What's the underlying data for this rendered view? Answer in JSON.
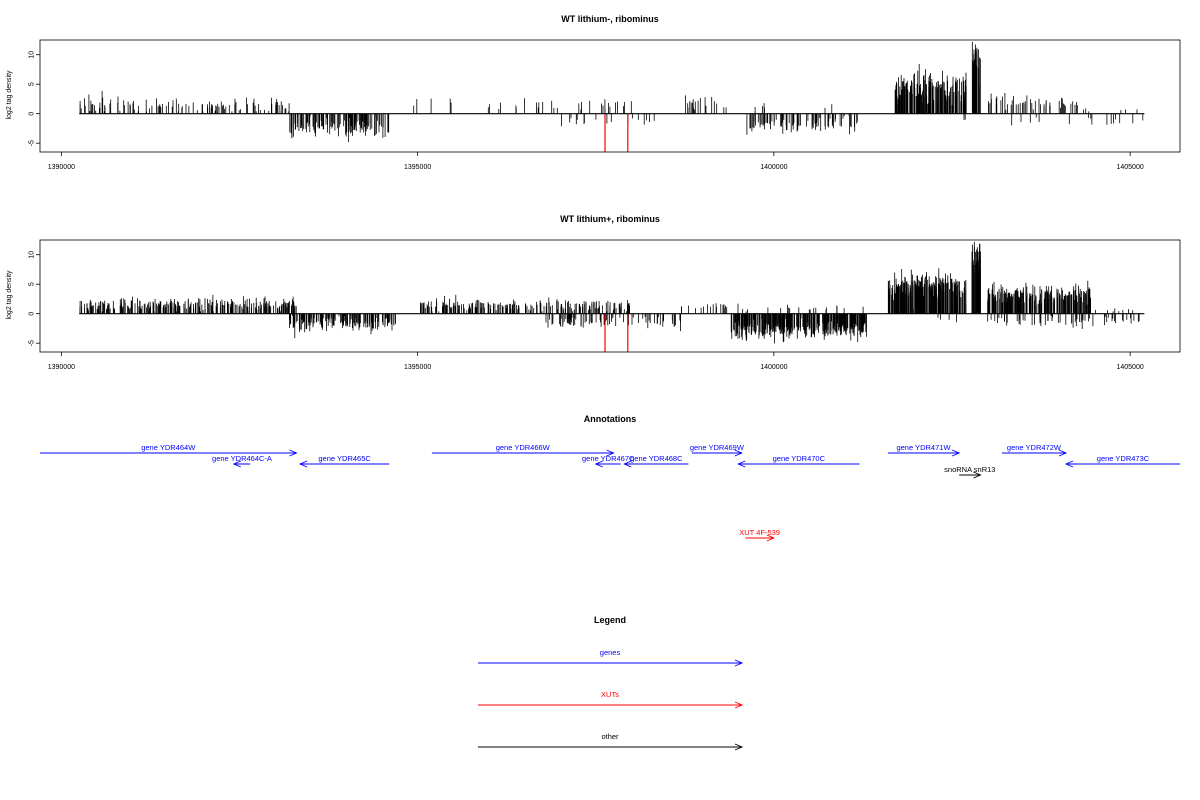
{
  "chart_data": [
    {
      "type": "bar",
      "title": "WT lithium-, ribominus",
      "xlabel": "",
      "ylabel": "log2 tag density",
      "xlim": [
        1389700,
        1405700
      ],
      "ylim": [
        -6.5,
        12.5
      ],
      "xticks": [
        "1390000",
        "1395000",
        "1400000",
        "1405000"
      ],
      "yticks": [
        "-5",
        "0",
        "5",
        "10"
      ],
      "data_span": [
        1390250,
        1405200
      ],
      "highlight_color": "#ff0000",
      "highlight_lines": [
        {
          "x": 1397630,
          "y": -6.5
        },
        {
          "x": 1397950,
          "y": -6.5
        }
      ],
      "sense_regions": [
        {
          "start": 1390250,
          "end": 1393200,
          "density": 0.55,
          "mean": 1.5,
          "spread": 1.2
        },
        {
          "start": 1394900,
          "end": 1395500,
          "density": 0.12,
          "mean": 1.7,
          "spread": 0.8
        },
        {
          "start": 1395900,
          "end": 1397000,
          "density": 0.18,
          "mean": 1.8,
          "spread": 0.9
        },
        {
          "start": 1397100,
          "end": 1398000,
          "density": 0.25,
          "mean": 1.6,
          "spread": 1.0
        },
        {
          "start": 1398700,
          "end": 1399300,
          "density": 0.45,
          "mean": 1.8,
          "spread": 1.0
        },
        {
          "start": 1399300,
          "end": 1401200,
          "density": 0.05,
          "mean": 1.2,
          "spread": 0.6
        },
        {
          "start": 1401700,
          "end": 1402700,
          "density": 2.2,
          "mean": 4.5,
          "spread": 2.2
        },
        {
          "start": 1402780,
          "end": 1402900,
          "density": 4.0,
          "mean": 9.0,
          "spread": 2.5
        },
        {
          "start": 1403000,
          "end": 1404300,
          "density": 0.55,
          "mean": 2.0,
          "spread": 1.1
        },
        {
          "start": 1404300,
          "end": 1405200,
          "density": 0.1,
          "mean": 1.0,
          "spread": 0.5
        }
      ],
      "antisense_regions": [
        {
          "start": 1393200,
          "end": 1394600,
          "density": 1.3,
          "mean": -2.5,
          "spread": 1.4
        },
        {
          "start": 1396900,
          "end": 1398500,
          "density": 0.15,
          "mean": -1.3,
          "spread": 0.7
        },
        {
          "start": 1399600,
          "end": 1401200,
          "density": 0.8,
          "mean": -2.0,
          "spread": 1.2
        },
        {
          "start": 1402400,
          "end": 1402800,
          "density": 0.08,
          "mean": -1.0,
          "spread": 0.5
        },
        {
          "start": 1403300,
          "end": 1405200,
          "density": 0.12,
          "mean": -1.5,
          "spread": 0.8
        }
      ]
    },
    {
      "type": "bar",
      "title": "WT lithium+, ribominus",
      "xlabel": "",
      "ylabel": "log2 tag density",
      "xlim": [
        1389700,
        1405700
      ],
      "ylim": [
        -6.5,
        12.5
      ],
      "xticks": [
        "1390000",
        "1395000",
        "1400000",
        "1405000"
      ],
      "yticks": [
        "-5",
        "0",
        "5",
        "10"
      ],
      "data_span": [
        1390250,
        1405200
      ],
      "highlight_color": "#ff0000",
      "highlight_lines": [
        {
          "x": 1397630,
          "y": -6.5
        },
        {
          "x": 1397950,
          "y": -6.5
        }
      ],
      "sense_regions": [
        {
          "start": 1390250,
          "end": 1393300,
          "density": 1.3,
          "mean": 1.5,
          "spread": 1.1
        },
        {
          "start": 1395000,
          "end": 1396500,
          "density": 1.0,
          "mean": 1.6,
          "spread": 1.0
        },
        {
          "start": 1396500,
          "end": 1398000,
          "density": 0.9,
          "mean": 1.4,
          "spread": 0.9
        },
        {
          "start": 1398700,
          "end": 1399600,
          "density": 0.3,
          "mean": 1.2,
          "spread": 0.7
        },
        {
          "start": 1399600,
          "end": 1401300,
          "density": 0.15,
          "mean": 1.0,
          "spread": 0.6
        },
        {
          "start": 1401600,
          "end": 1402700,
          "density": 3.0,
          "mean": 4.5,
          "spread": 2.0
        },
        {
          "start": 1402780,
          "end": 1402900,
          "density": 4.0,
          "mean": 9.5,
          "spread": 2.5
        },
        {
          "start": 1403000,
          "end": 1404450,
          "density": 2.2,
          "mean": 3.3,
          "spread": 1.4
        },
        {
          "start": 1404450,
          "end": 1405200,
          "density": 0.15,
          "mean": 0.8,
          "spread": 0.5
        }
      ],
      "antisense_regions": [
        {
          "start": 1393200,
          "end": 1394700,
          "density": 1.5,
          "mean": -1.8,
          "spread": 1.2
        },
        {
          "start": 1396800,
          "end": 1398700,
          "density": 0.6,
          "mean": -1.5,
          "spread": 0.9
        },
        {
          "start": 1399400,
          "end": 1401300,
          "density": 2.8,
          "mean": -2.6,
          "spread": 1.4
        },
        {
          "start": 1402300,
          "end": 1402800,
          "density": 0.1,
          "mean": -1.0,
          "spread": 0.5
        },
        {
          "start": 1403000,
          "end": 1405200,
          "density": 0.4,
          "mean": -1.3,
          "spread": 0.8
        }
      ]
    }
  ],
  "annotations": {
    "title": "Annotations",
    "xlim": [
      1389700,
      1405700
    ],
    "features": [
      {
        "label": "gene YDR464W",
        "start": 1389700,
        "end": 1393300,
        "strand": "+",
        "kind": "gene",
        "row": 0
      },
      {
        "label": "gene YDR464C-A",
        "start": 1392420,
        "end": 1392650,
        "strand": "-",
        "kind": "gene",
        "row": 1
      },
      {
        "label": "gene YDR465C",
        "start": 1393350,
        "end": 1394600,
        "strand": "-",
        "kind": "gene",
        "row": 1
      },
      {
        "label": "gene YDR466W",
        "start": 1395200,
        "end": 1397750,
        "strand": "+",
        "kind": "gene",
        "row": 0
      },
      {
        "label": "gene YDR467C",
        "start": 1397500,
        "end": 1397850,
        "strand": "-",
        "kind": "gene",
        "row": 1
      },
      {
        "label": "gene YDR468C",
        "start": 1397900,
        "end": 1398800,
        "strand": "-",
        "kind": "gene",
        "row": 1
      },
      {
        "label": "gene YDR469W",
        "start": 1398850,
        "end": 1399550,
        "strand": "+",
        "kind": "gene",
        "row": 0
      },
      {
        "label": "gene YDR470C",
        "start": 1399500,
        "end": 1401200,
        "strand": "-",
        "kind": "gene",
        "row": 1
      },
      {
        "label": "gene YDR471W",
        "start": 1401600,
        "end": 1402600,
        "strand": "+",
        "kind": "gene",
        "row": 0
      },
      {
        "label": "snoRNA snR13",
        "start": 1402600,
        "end": 1402900,
        "strand": "+",
        "kind": "other",
        "row": 2
      },
      {
        "label": "gene YDR472W",
        "start": 1403200,
        "end": 1404100,
        "strand": "+",
        "kind": "gene",
        "row": 0
      },
      {
        "label": "gene YDR473C",
        "start": 1404100,
        "end": 1405700,
        "strand": "-",
        "kind": "gene",
        "row": 1
      },
      {
        "label": "XUT 4F-539",
        "start": 1399600,
        "end": 1400000,
        "strand": "+",
        "kind": "xut",
        "row": 3
      }
    ]
  },
  "legend": {
    "title": "Legend",
    "items": [
      {
        "label": "genes",
        "color": "#0000ff"
      },
      {
        "label": "XUTs",
        "color": "#ff0000"
      },
      {
        "label": "other",
        "color": "#000000"
      }
    ]
  },
  "colors": {
    "gene": "#0000ff",
    "xut": "#ff0000",
    "other": "#000000",
    "axis": "#000000"
  }
}
